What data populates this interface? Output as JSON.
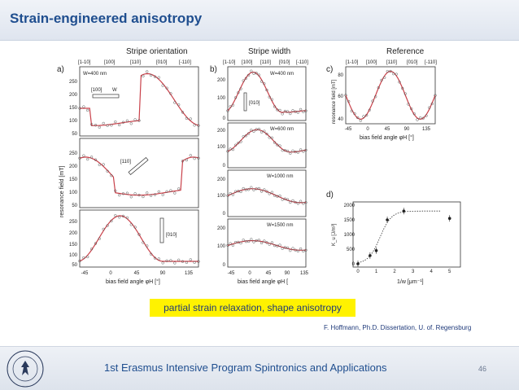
{
  "slide": {
    "title": "Strain-engineered anisotropy",
    "highlight": "partial strain relaxation, shape anisotropy",
    "citation": "F. Hoffmann, Ph.D. Dissertation, U. of. Regensburg",
    "footer": "1st Erasmus Intensive Program Spintronics and Applications",
    "page_number": "46"
  },
  "logo": {
    "name": "university-seal",
    "text_top": "UNIVERSITAS",
    "text_bottom": "VARSOVIENSIS"
  },
  "colors": {
    "title": "#1f4e8f",
    "fit_curve": "#c9414a",
    "highlight": "#fff200"
  },
  "figure": {
    "headers": [
      "Stripe orientation",
      "Stripe width",
      "Reference"
    ],
    "panel_labels": [
      "a)",
      "b)",
      "c)",
      "d)"
    ],
    "direction_ticks": [
      "[1-10]",
      "[100]",
      "[110]",
      "[010]",
      "[-110]"
    ],
    "angle_ticks": [
      "-45",
      "0",
      "45",
      "90",
      "135"
    ],
    "xlabel": "bias field angle φH [°]",
    "xlabel_b": "bias field angle φH [",
    "ylabel_left": "resonance field [mT]",
    "ylabel_ref": "resonance field [mT]",
    "a_insets": [
      "W=400 nm",
      "[100]",
      "W",
      "[110]",
      "[010]"
    ],
    "b_insets": [
      "W=400 nm",
      "[010]",
      "W=600 nm",
      "W=1000 nm",
      "W=1500 nm"
    ],
    "a_yticks": [
      "250",
      "200",
      "150",
      "100",
      "50"
    ],
    "b_yticks": [
      "200",
      "100",
      "0"
    ],
    "c_yticks": [
      "80",
      "60",
      "40"
    ],
    "d_xlabel": "1/w [μm⁻¹]",
    "d_ylabel": "K_u [J/m³]",
    "d_xticks": [
      "0",
      "1",
      "2",
      "3",
      "4",
      "5"
    ],
    "d_yticks": [
      "2000",
      "1500",
      "1000",
      "500",
      "0"
    ]
  },
  "chart_data": [
    {
      "type": "scatter",
      "title": "d)",
      "xlabel": "1/w [μm⁻¹]",
      "ylabel": "K_u [J/m³]",
      "x": [
        0,
        0.66,
        1.0,
        1.6,
        2.5,
        5.0
      ],
      "y": [
        0,
        280,
        450,
        1500,
        1800,
        1550
      ],
      "xlim": [
        0,
        5.5
      ],
      "ylim": [
        0,
        2000
      ]
    }
  ]
}
